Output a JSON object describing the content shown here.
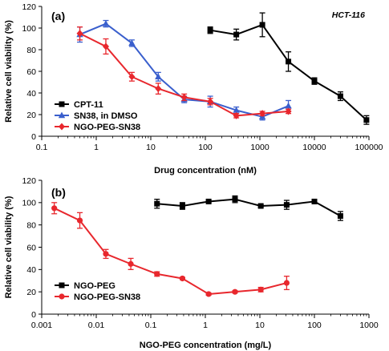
{
  "chart_data": [
    {
      "type": "line",
      "panel_label": "(a)",
      "annotation": "HCT-116",
      "xlabel": "Drug concentration (nM)",
      "ylabel": "Relative cell viability (%)",
      "x_scale": "log",
      "xlim": [
        0.1,
        100000
      ],
      "ylim": [
        0,
        120
      ],
      "x_ticks": [
        0.1,
        1,
        10,
        100,
        1000,
        10000,
        100000
      ],
      "x_tick_labels": [
        "0.1",
        "1",
        "10",
        "100",
        "1000",
        "10000",
        "100000"
      ],
      "y_ticks": [
        0,
        20,
        40,
        60,
        80,
        100,
        120
      ],
      "y_tick_labels": [
        "0",
        "20",
        "40",
        "60",
        "80",
        "100",
        "120"
      ],
      "grid": false,
      "legend_position": "bottom-left",
      "series": [
        {
          "name": "CPT-11",
          "color": "#000000",
          "marker": "square",
          "x": [
            123,
            370,
            1111,
            3333,
            10000,
            30000,
            90000
          ],
          "y": [
            98,
            94,
            103,
            69,
            51,
            37,
            15
          ],
          "err": [
            3,
            5,
            11,
            9,
            3,
            4,
            4
          ]
        },
        {
          "name": "SN38, in DMSO",
          "color": "#3a5fcd",
          "marker": "triangle",
          "x": [
            0.5,
            1.5,
            4.5,
            13.7,
            41,
            123,
            370,
            1111,
            3333
          ],
          "y": [
            94,
            104,
            86,
            55,
            34,
            32,
            24,
            18,
            28
          ],
          "err": [
            7,
            3,
            3,
            4,
            3,
            5,
            3,
            3,
            5
          ]
        },
        {
          "name": "NGO-PEG-SN38",
          "color": "#e8272d",
          "marker": "diamond",
          "x": [
            0.5,
            1.5,
            4.5,
            13.7,
            41,
            123,
            370,
            1111,
            3333
          ],
          "y": [
            95,
            83,
            55,
            44,
            36,
            32,
            19,
            21,
            23
          ],
          "err": [
            6,
            7,
            4,
            5,
            3,
            3,
            2,
            2,
            2
          ]
        }
      ]
    },
    {
      "type": "line",
      "panel_label": "(b)",
      "xlabel": "NGO-PEG concentration (mg/L)",
      "ylabel": "Relative cell viability (%)",
      "x_scale": "log",
      "xlim": [
        0.001,
        1000
      ],
      "ylim": [
        0,
        120
      ],
      "x_ticks": [
        0.001,
        0.01,
        0.1,
        1,
        10,
        100,
        1000
      ],
      "x_tick_labels": [
        "0.001",
        "0.01",
        "0.1",
        "1",
        "10",
        "100",
        "1000"
      ],
      "y_ticks": [
        0,
        20,
        40,
        60,
        80,
        100,
        120
      ],
      "y_tick_labels": [
        "0",
        "20",
        "40",
        "60",
        "80",
        "100",
        "120"
      ],
      "grid": false,
      "legend_position": "bottom-left",
      "series": [
        {
          "name": "NGO-PEG",
          "color": "#000000",
          "marker": "square",
          "x": [
            0.13,
            0.38,
            1.15,
            3.5,
            10.4,
            31,
            100,
            300
          ],
          "y": [
            99,
            97,
            101,
            103,
            97,
            98,
            101,
            88
          ],
          "err": [
            4,
            3,
            1,
            3,
            1,
            4,
            2,
            4
          ]
        },
        {
          "name": "NGO-PEG-SN38",
          "color": "#e8272d",
          "marker": "circle",
          "x": [
            0.0017,
            0.005,
            0.015,
            0.043,
            0.13,
            0.38,
            1.15,
            3.5,
            10.4,
            31
          ],
          "y": [
            95,
            84,
            54,
            45,
            36,
            32,
            18,
            20,
            22,
            28
          ],
          "err": [
            5,
            7,
            4,
            5,
            2,
            1,
            1,
            1,
            2,
            6
          ]
        }
      ]
    }
  ]
}
